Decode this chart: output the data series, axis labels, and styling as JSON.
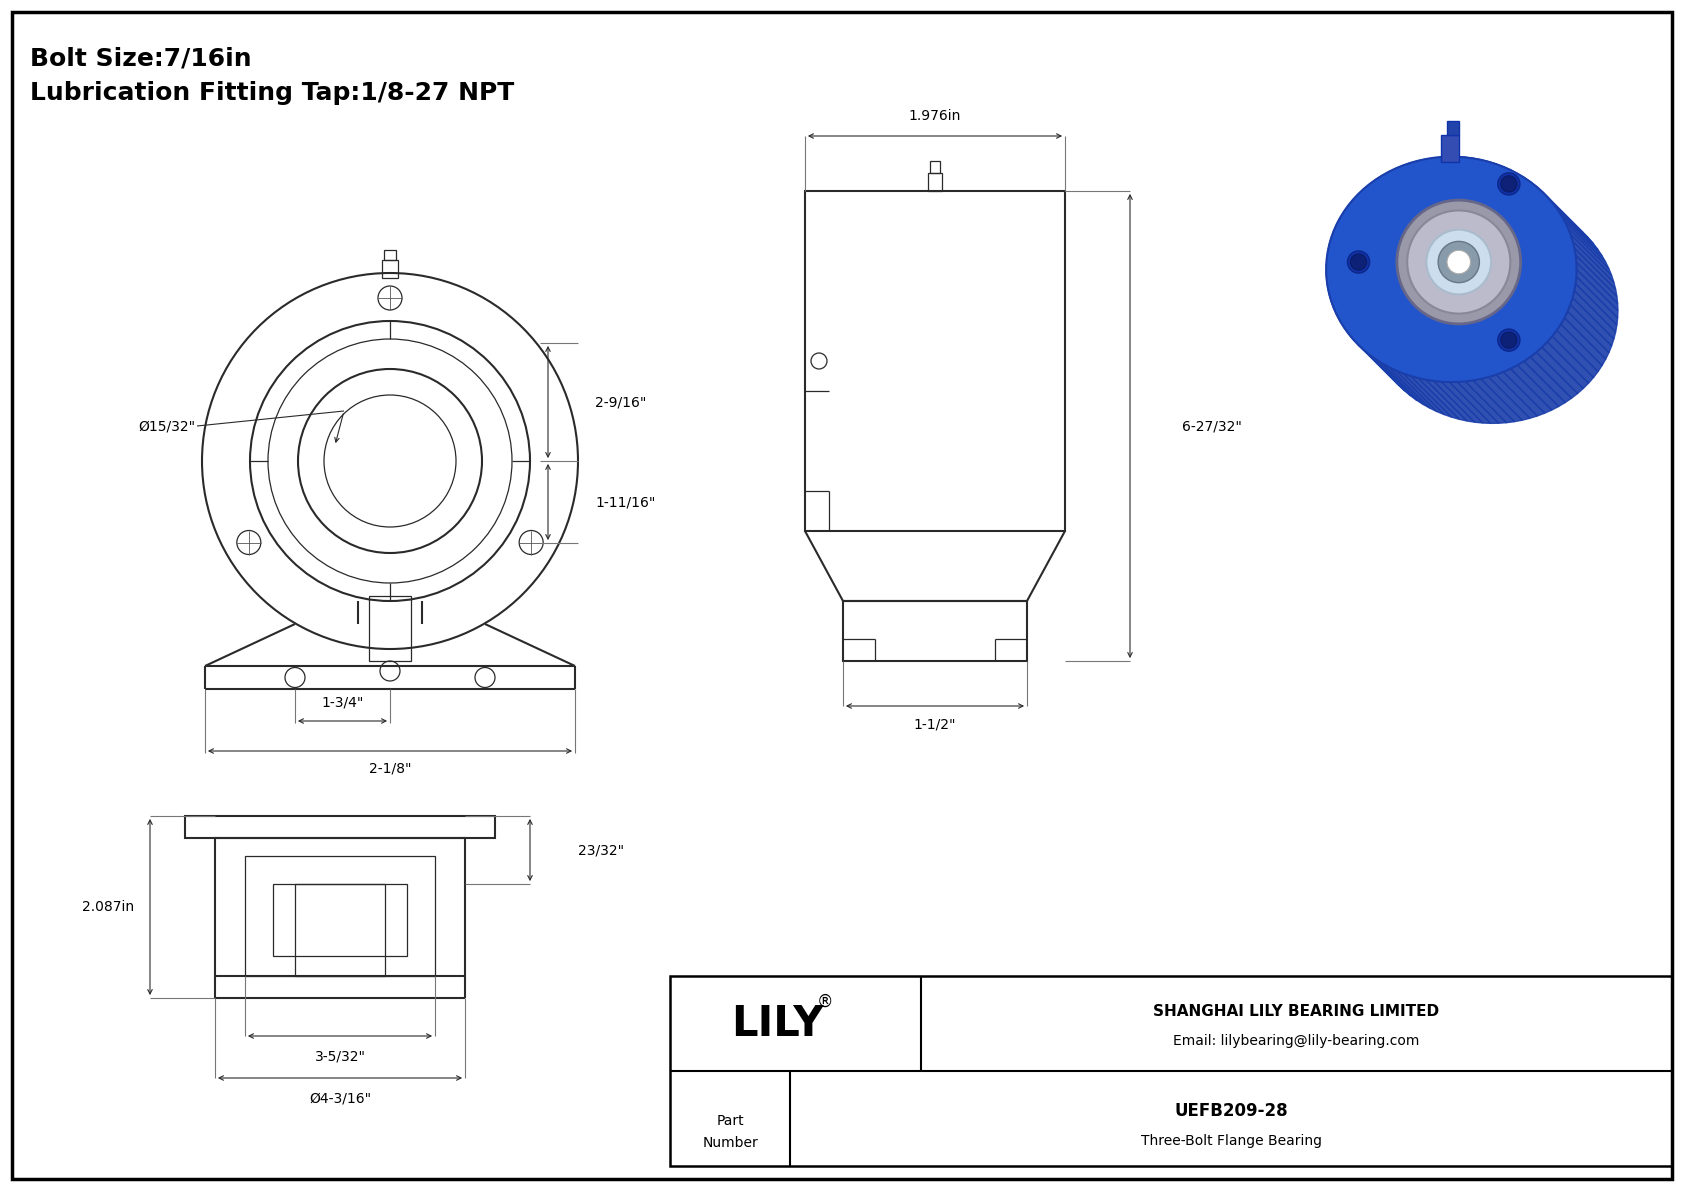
{
  "title_line1": "Bolt Size:7/16in",
  "title_line2": "Lubrication Fitting Tap:1/8-27 NPT",
  "bg_color": "#ffffff",
  "line_color": "#2a2a2a",
  "border_color": "#000000",
  "company_name": "SHANGHAI LILY BEARING LIMITED",
  "company_email": "Email: lilybearing@lily-bearing.com",
  "part_label": "Part\nNumber",
  "part_number": "UEFB209-28",
  "part_desc": "Three-Bolt Flange Bearing",
  "logo_text": "LILY",
  "logo_reg": "®",
  "dims": {
    "d1": "Ø15/32\"",
    "d2": "2-9/16\"",
    "d3": "1-11/16\"",
    "d4": "1-3/4\"",
    "d5": "2-1/8\"",
    "d6": "1.976in",
    "d7": "6-27/32\"",
    "d8": "1-1/2\"",
    "d9": "2.087in",
    "d10": "23/32\"",
    "d11": "3-5/32\"",
    "d12": "Ø4-3/16\""
  }
}
